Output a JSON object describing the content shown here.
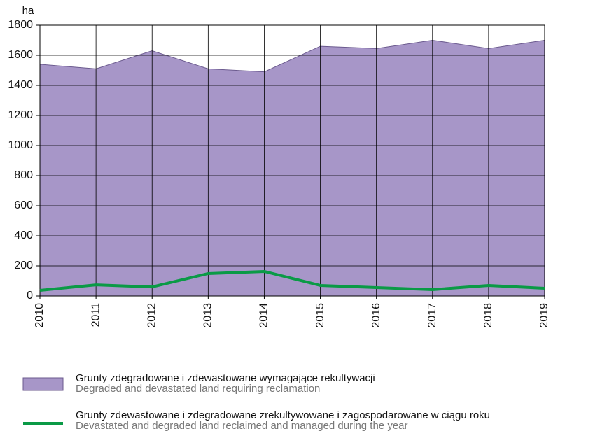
{
  "chart_data": {
    "type": "area",
    "y_axis_label": "ha",
    "categories": [
      "2010",
      "2011",
      "2012",
      "2013",
      "2014",
      "2015",
      "2016",
      "2017",
      "2018",
      "2019"
    ],
    "series": [
      {
        "name": "Grunty zdegradowane i zdewastowane wymagające rekultywacji",
        "name_en": "Degraded and devastated land requiring reclamation",
        "type": "area",
        "color": "#a796c8",
        "values": [
          1540,
          1510,
          1630,
          1510,
          1490,
          1660,
          1645,
          1700,
          1645,
          1700
        ]
      },
      {
        "name": "Grunty zdewastowane i zdegradowane zrekultywowane i zagospodarowane w ciągu roku",
        "name_en": "Devastated and degraded land reclaimed and managed during the year",
        "type": "line",
        "color": "#0a9a46",
        "values": [
          37,
          74,
          60,
          149,
          163,
          70,
          56,
          42,
          70,
          51
        ]
      }
    ],
    "ylim": [
      0,
      1800
    ],
    "yticks": [
      0,
      200,
      400,
      600,
      800,
      1000,
      1200,
      1400,
      1600,
      1800
    ],
    "grid": true
  }
}
